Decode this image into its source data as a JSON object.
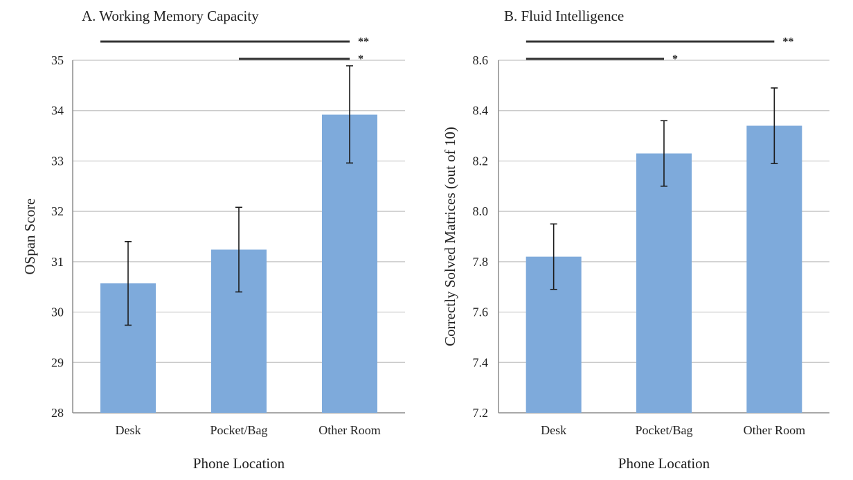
{
  "chart_data": [
    {
      "type": "bar",
      "title": "A. Working Memory Capacity",
      "xlabel": "Phone Location",
      "ylabel": "OSpan Score",
      "categories": [
        "Desk",
        "Pocket/Bag",
        "Other Room"
      ],
      "values": [
        30.57,
        31.24,
        33.92
      ],
      "error_low": [
        29.74,
        30.4,
        32.96
      ],
      "error_high": [
        31.4,
        32.08,
        34.89
      ],
      "ylim": [
        28,
        35
      ],
      "yticks": [
        "28",
        "29",
        "30",
        "31",
        "32",
        "33",
        "34",
        "35"
      ],
      "ytick_values": [
        28,
        29,
        30,
        31,
        32,
        33,
        34,
        35
      ],
      "grid": true,
      "bar_color": "#7eaadb",
      "significance": [
        {
          "from": "Desk",
          "to": "Other Room",
          "label": "**"
        },
        {
          "from": "Pocket/Bag",
          "to": "Other Room",
          "label": "*"
        }
      ]
    },
    {
      "type": "bar",
      "title": "B. Fluid Intelligence",
      "xlabel": "Phone Location",
      "ylabel": "Correctly Solved Matrices (out of 10)",
      "categories": [
        "Desk",
        "Pocket/Bag",
        "Other Room"
      ],
      "values": [
        7.82,
        8.23,
        8.34
      ],
      "error_low": [
        7.69,
        8.1,
        8.19
      ],
      "error_high": [
        7.95,
        8.36,
        8.49
      ],
      "ylim": [
        7.2,
        8.6
      ],
      "yticks": [
        "7.2",
        "7.4",
        "7.6",
        "7.8",
        "8.0",
        "8.2",
        "8.4",
        "8.6"
      ],
      "ytick_values": [
        7.2,
        7.4,
        7.6,
        7.8,
        8.0,
        8.2,
        8.4,
        8.6
      ],
      "grid": true,
      "bar_color": "#7eaadb",
      "significance": [
        {
          "from": "Desk",
          "to": "Other Room",
          "label": "**"
        },
        {
          "from": "Desk",
          "to": "Pocket/Bag",
          "label": "*"
        }
      ]
    }
  ]
}
